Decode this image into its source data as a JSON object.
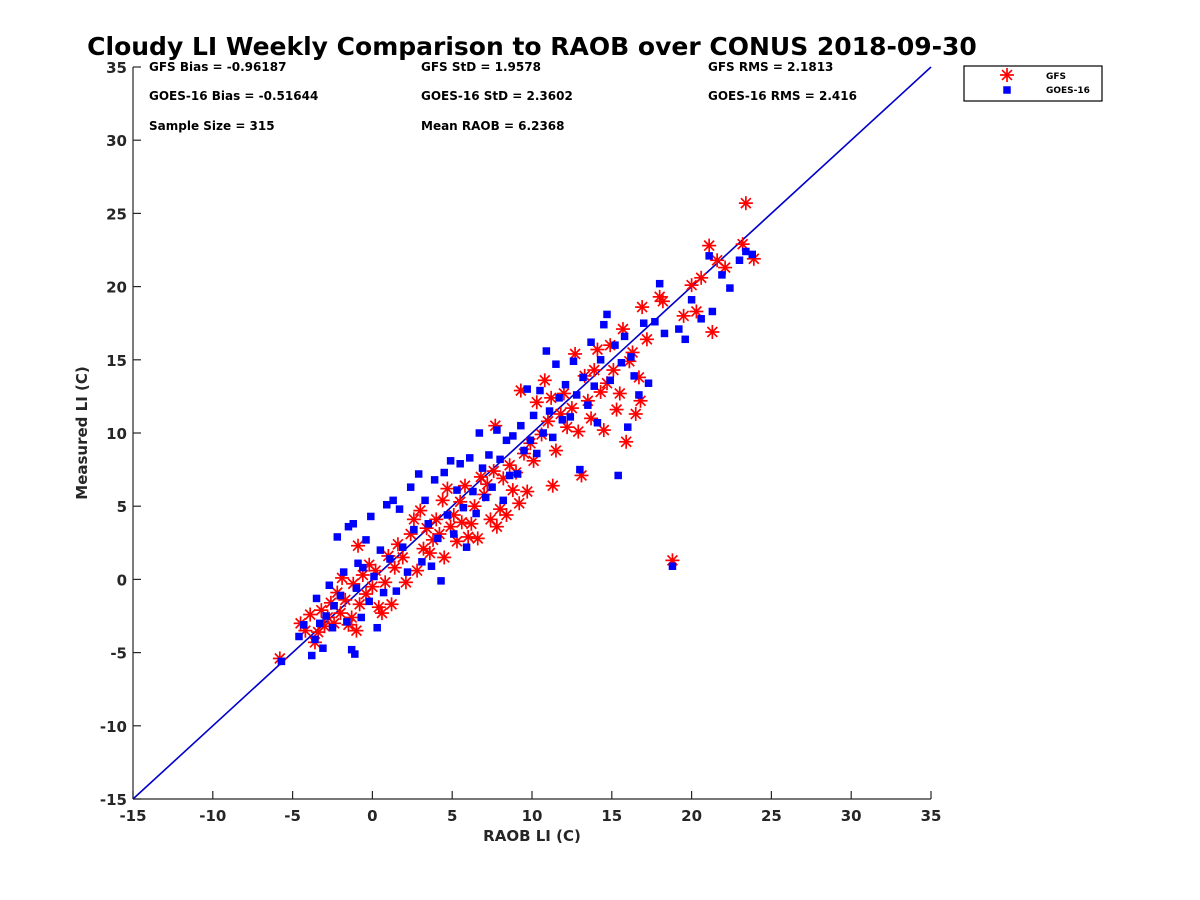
{
  "chart_data": {
    "type": "scatter",
    "title": "Cloudy LI Weekly Comparison to RAOB over CONUS 2018-09-30",
    "xlabel": "RAOB LI (C)",
    "ylabel": "Measured LI (C)",
    "xlim": [
      -15,
      35
    ],
    "ylim": [
      -15,
      35
    ],
    "xticks": [
      "-15",
      "-10",
      "-5",
      "0",
      "5",
      "10",
      "15",
      "20",
      "25",
      "30",
      "35"
    ],
    "yticks": [
      "-15",
      "-10",
      "-5",
      "0",
      "5",
      "10",
      "15",
      "20",
      "25",
      "30",
      "35"
    ],
    "grid": false,
    "legend_position": "outside-top-right",
    "stats": [
      [
        "GFS Bias = -0.96187",
        "GFS StD = 1.9578",
        "GFS RMS = 2.1813"
      ],
      [
        "GOES-16 Bias = -0.51644",
        "GOES-16 StD = 2.3602",
        "GOES-16 RMS = 2.416"
      ],
      [
        "Sample Size = 315",
        "Mean RAOB = 6.2368"
      ]
    ],
    "reference_line": {
      "x": [
        -15,
        35
      ],
      "y": [
        -15,
        35
      ],
      "color": "#0000cc"
    },
    "series": [
      {
        "name": "GFS",
        "marker": "asterisk",
        "color": "#ff0000",
        "points": [
          [
            -5.8,
            -5.4
          ],
          [
            -4.5,
            -3.0
          ],
          [
            -4.2,
            -3.5
          ],
          [
            -3.9,
            -2.4
          ],
          [
            -3.6,
            -4.3
          ],
          [
            -3.4,
            -3.6
          ],
          [
            -3.2,
            -2.1
          ],
          [
            -3.0,
            -3.2
          ],
          [
            -2.8,
            -2.6
          ],
          [
            -2.6,
            -1.6
          ],
          [
            -2.4,
            -3.0
          ],
          [
            -2.2,
            -0.9
          ],
          [
            -2.0,
            -2.3
          ],
          [
            -1.9,
            0.1
          ],
          [
            -1.7,
            -1.4
          ],
          [
            -1.5,
            -3.1
          ],
          [
            -1.3,
            -2.6
          ],
          [
            -1.2,
            -0.3
          ],
          [
            -1.0,
            -3.5
          ],
          [
            -0.9,
            2.3
          ],
          [
            -0.8,
            -1.7
          ],
          [
            -0.6,
            0.3
          ],
          [
            -0.4,
            -1.0
          ],
          [
            -0.2,
            1.0
          ],
          [
            0.0,
            -0.5
          ],
          [
            0.2,
            0.6
          ],
          [
            0.4,
            -1.9
          ],
          [
            0.6,
            -2.3
          ],
          [
            0.8,
            -0.2
          ],
          [
            1.0,
            1.6
          ],
          [
            1.2,
            -1.7
          ],
          [
            1.4,
            0.8
          ],
          [
            1.6,
            2.4
          ],
          [
            1.9,
            1.5
          ],
          [
            2.1,
            -0.2
          ],
          [
            2.4,
            3.1
          ],
          [
            2.6,
            4.1
          ],
          [
            2.8,
            0.6
          ],
          [
            3.0,
            4.7
          ],
          [
            3.2,
            2.1
          ],
          [
            3.4,
            3.5
          ],
          [
            3.6,
            1.8
          ],
          [
            3.8,
            2.7
          ],
          [
            4.0,
            4.1
          ],
          [
            4.2,
            3.1
          ],
          [
            4.4,
            5.4
          ],
          [
            4.5,
            1.5
          ],
          [
            4.7,
            6.2
          ],
          [
            4.9,
            3.6
          ],
          [
            5.1,
            4.4
          ],
          [
            5.3,
            2.6
          ],
          [
            5.5,
            5.3
          ],
          [
            5.6,
            3.9
          ],
          [
            5.8,
            6.4
          ],
          [
            6.0,
            2.9
          ],
          [
            6.2,
            3.8
          ],
          [
            6.4,
            5.0
          ],
          [
            6.6,
            2.8
          ],
          [
            6.8,
            7.0
          ],
          [
            7.0,
            5.8
          ],
          [
            7.2,
            6.5
          ],
          [
            7.4,
            4.1
          ],
          [
            7.6,
            7.4
          ],
          [
            7.7,
            10.5
          ],
          [
            7.8,
            3.6
          ],
          [
            8.0,
            4.8
          ],
          [
            8.2,
            6.9
          ],
          [
            8.4,
            4.4
          ],
          [
            8.6,
            7.8
          ],
          [
            8.8,
            6.1
          ],
          [
            9.0,
            7.3
          ],
          [
            9.2,
            5.2
          ],
          [
            9.3,
            12.9
          ],
          [
            9.5,
            8.6
          ],
          [
            9.7,
            6.0
          ],
          [
            9.9,
            9.3
          ],
          [
            10.1,
            8.1
          ],
          [
            10.3,
            12.1
          ],
          [
            10.6,
            9.9
          ],
          [
            10.8,
            13.6
          ],
          [
            11.0,
            10.8
          ],
          [
            11.2,
            12.4
          ],
          [
            11.3,
            6.4
          ],
          [
            11.5,
            8.8
          ],
          [
            11.8,
            11.3
          ],
          [
            12.0,
            12.7
          ],
          [
            12.2,
            10.4
          ],
          [
            12.5,
            11.7
          ],
          [
            12.7,
            15.4
          ],
          [
            12.9,
            10.1
          ],
          [
            13.1,
            7.1
          ],
          [
            13.3,
            13.9
          ],
          [
            13.5,
            12.2
          ],
          [
            13.7,
            11.0
          ],
          [
            13.9,
            14.3
          ],
          [
            14.1,
            15.7
          ],
          [
            14.3,
            12.8
          ],
          [
            14.5,
            10.2
          ],
          [
            14.7,
            13.4
          ],
          [
            14.9,
            16.0
          ],
          [
            15.1,
            14.3
          ],
          [
            15.3,
            11.6
          ],
          [
            15.5,
            12.7
          ],
          [
            15.7,
            17.1
          ],
          [
            15.9,
            9.4
          ],
          [
            16.1,
            14.9
          ],
          [
            16.3,
            15.5
          ],
          [
            16.5,
            11.3
          ],
          [
            16.7,
            13.8
          ],
          [
            16.8,
            12.2
          ],
          [
            16.9,
            18.6
          ],
          [
            17.2,
            16.4
          ],
          [
            18.0,
            19.3
          ],
          [
            18.2,
            19.0
          ],
          [
            18.8,
            1.3
          ],
          [
            19.5,
            18.0
          ],
          [
            20.0,
            20.1
          ],
          [
            20.3,
            18.3
          ],
          [
            20.6,
            20.6
          ],
          [
            21.1,
            22.8
          ],
          [
            21.3,
            16.9
          ],
          [
            21.6,
            21.8
          ],
          [
            22.1,
            21.3
          ],
          [
            23.2,
            22.9
          ],
          [
            23.4,
            25.7
          ],
          [
            23.9,
            21.9
          ]
        ]
      },
      {
        "name": "GOES-16",
        "marker": "square",
        "color": "#0000ff",
        "points": [
          [
            -5.7,
            -5.6
          ],
          [
            -4.6,
            -3.9
          ],
          [
            -4.3,
            -3.1
          ],
          [
            -3.8,
            -5.2
          ],
          [
            -3.6,
            -4.1
          ],
          [
            -3.5,
            -1.3
          ],
          [
            -3.3,
            -3.0
          ],
          [
            -3.1,
            -4.7
          ],
          [
            -2.9,
            -2.5
          ],
          [
            -2.7,
            -0.4
          ],
          [
            -2.5,
            -3.3
          ],
          [
            -2.4,
            -1.8
          ],
          [
            -2.2,
            2.9
          ],
          [
            -2.0,
            -1.1
          ],
          [
            -1.8,
            0.5
          ],
          [
            -1.6,
            -2.9
          ],
          [
            -1.5,
            3.6
          ],
          [
            -1.3,
            -4.8
          ],
          [
            -1.2,
            3.8
          ],
          [
            -1.1,
            -5.1
          ],
          [
            -1.0,
            -0.6
          ],
          [
            -0.9,
            1.1
          ],
          [
            -0.7,
            -2.6
          ],
          [
            -0.6,
            0.8
          ],
          [
            -0.4,
            2.7
          ],
          [
            -0.2,
            -1.5
          ],
          [
            -0.1,
            4.3
          ],
          [
            0.1,
            0.2
          ],
          [
            0.3,
            -3.3
          ],
          [
            0.5,
            2.0
          ],
          [
            0.7,
            -0.9
          ],
          [
            0.9,
            5.1
          ],
          [
            1.1,
            1.4
          ],
          [
            1.3,
            5.4
          ],
          [
            1.5,
            -0.8
          ],
          [
            1.7,
            4.8
          ],
          [
            1.9,
            2.2
          ],
          [
            2.2,
            0.5
          ],
          [
            2.4,
            6.3
          ],
          [
            2.6,
            3.4
          ],
          [
            2.9,
            7.2
          ],
          [
            3.1,
            1.2
          ],
          [
            3.3,
            5.4
          ],
          [
            3.5,
            3.8
          ],
          [
            3.7,
            0.9
          ],
          [
            3.9,
            6.8
          ],
          [
            4.1,
            2.8
          ],
          [
            4.3,
            -0.1
          ],
          [
            4.5,
            7.3
          ],
          [
            4.7,
            4.4
          ],
          [
            4.9,
            8.1
          ],
          [
            5.1,
            3.1
          ],
          [
            5.3,
            6.1
          ],
          [
            5.5,
            7.9
          ],
          [
            5.7,
            4.9
          ],
          [
            5.9,
            2.2
          ],
          [
            6.1,
            8.3
          ],
          [
            6.3,
            6.0
          ],
          [
            6.5,
            4.5
          ],
          [
            6.7,
            10.0
          ],
          [
            6.9,
            7.6
          ],
          [
            7.1,
            5.6
          ],
          [
            7.3,
            8.5
          ],
          [
            7.5,
            6.3
          ],
          [
            7.8,
            10.2
          ],
          [
            8.0,
            8.2
          ],
          [
            8.2,
            5.4
          ],
          [
            8.4,
            9.5
          ],
          [
            8.6,
            7.1
          ],
          [
            8.8,
            9.8
          ],
          [
            9.1,
            7.2
          ],
          [
            9.3,
            10.5
          ],
          [
            9.5,
            8.8
          ],
          [
            9.7,
            13.0
          ],
          [
            9.9,
            9.5
          ],
          [
            10.1,
            11.2
          ],
          [
            10.3,
            8.6
          ],
          [
            10.5,
            12.9
          ],
          [
            10.7,
            10.0
          ],
          [
            10.9,
            15.6
          ],
          [
            11.1,
            11.5
          ],
          [
            11.3,
            9.7
          ],
          [
            11.5,
            14.7
          ],
          [
            11.7,
            12.4
          ],
          [
            11.9,
            10.9
          ],
          [
            12.1,
            13.3
          ],
          [
            12.4,
            11.1
          ],
          [
            12.6,
            14.9
          ],
          [
            12.8,
            12.6
          ],
          [
            13.0,
            7.5
          ],
          [
            13.2,
            13.8
          ],
          [
            13.5,
            11.9
          ],
          [
            13.7,
            16.2
          ],
          [
            13.9,
            13.2
          ],
          [
            14.1,
            10.7
          ],
          [
            14.3,
            15.0
          ],
          [
            14.5,
            17.4
          ],
          [
            14.7,
            18.1
          ],
          [
            14.9,
            13.6
          ],
          [
            15.2,
            16.0
          ],
          [
            15.4,
            7.1
          ],
          [
            15.6,
            14.8
          ],
          [
            15.8,
            16.6
          ],
          [
            16.0,
            10.4
          ],
          [
            16.2,
            15.2
          ],
          [
            16.4,
            13.9
          ],
          [
            16.7,
            12.6
          ],
          [
            17.0,
            17.5
          ],
          [
            17.3,
            13.4
          ],
          [
            17.7,
            17.6
          ],
          [
            18.0,
            20.2
          ],
          [
            18.3,
            16.8
          ],
          [
            18.8,
            0.9
          ],
          [
            19.2,
            17.1
          ],
          [
            19.6,
            16.4
          ],
          [
            20.0,
            19.1
          ],
          [
            20.6,
            17.8
          ],
          [
            21.1,
            22.1
          ],
          [
            21.3,
            18.3
          ],
          [
            21.9,
            20.8
          ],
          [
            22.4,
            19.9
          ],
          [
            23.0,
            21.8
          ],
          [
            23.4,
            22.4
          ],
          [
            23.8,
            22.2
          ]
        ]
      }
    ]
  }
}
